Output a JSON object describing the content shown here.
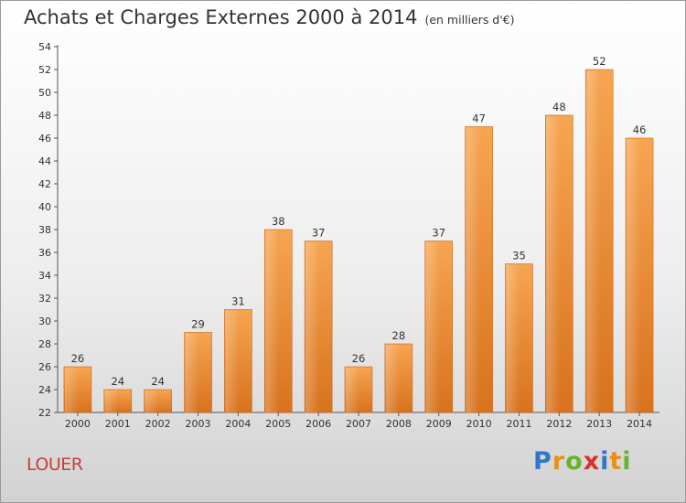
{
  "title": "Achats et Charges Externes 2000 à 2014",
  "subtitle": "(en milliers d'€)",
  "town": "LOUER",
  "logo": "Proxiti",
  "chart_data": {
    "type": "bar",
    "title": "Achats et Charges Externes 2000 à 2014",
    "subtitle": "(en milliers d'€)",
    "categories": [
      "2000",
      "2001",
      "2002",
      "2003",
      "2004",
      "2005",
      "2006",
      "2007",
      "2008",
      "2009",
      "2010",
      "2011",
      "2012",
      "2013",
      "2014"
    ],
    "values": [
      26,
      24,
      24,
      29,
      31,
      38,
      37,
      26,
      28,
      37,
      47,
      35,
      48,
      52,
      46
    ],
    "ylim": [
      22,
      54
    ],
    "ytick_step": 2,
    "xlabel": "",
    "ylabel": "",
    "bar_color": "#f0923a",
    "grid": false,
    "legend": "none"
  }
}
